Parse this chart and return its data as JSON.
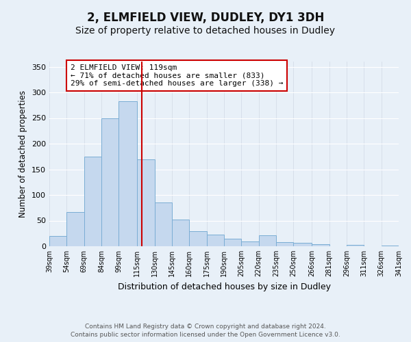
{
  "title": "2, ELMFIELD VIEW, DUDLEY, DY1 3DH",
  "subtitle": "Size of property relative to detached houses in Dudley",
  "xlabel": "Distribution of detached houses by size in Dudley",
  "ylabel": "Number of detached properties",
  "bar_values": [
    20,
    67,
    175,
    250,
    283,
    170,
    85,
    52,
    30,
    23,
    15,
    10,
    22,
    8,
    7,
    4,
    0,
    3,
    0,
    2
  ],
  "bin_edges": [
    39,
    54,
    69,
    84,
    99,
    115,
    130,
    145,
    160,
    175,
    190,
    205,
    220,
    235,
    250,
    266,
    281,
    296,
    311,
    326,
    341
  ],
  "bar_color": "#c5d8ee",
  "bar_edge_color": "#7aadd4",
  "vline_x": 119,
  "vline_color": "#cc0000",
  "ylim": [
    0,
    360
  ],
  "yticks": [
    0,
    50,
    100,
    150,
    200,
    250,
    300,
    350
  ],
  "annotation_title": "2 ELMFIELD VIEW: 119sqm",
  "annotation_line1": "← 71% of detached houses are smaller (833)",
  "annotation_line2": "29% of semi-detached houses are larger (338) →",
  "annotation_box_color": "#ffffff",
  "annotation_box_edge": "#cc0000",
  "background_color": "#e8f0f8",
  "grid_color": "#d0d8e4",
  "footer1": "Contains HM Land Registry data © Crown copyright and database right 2024.",
  "footer2": "Contains public sector information licensed under the Open Government Licence v3.0.",
  "title_fontsize": 12,
  "subtitle_fontsize": 10
}
